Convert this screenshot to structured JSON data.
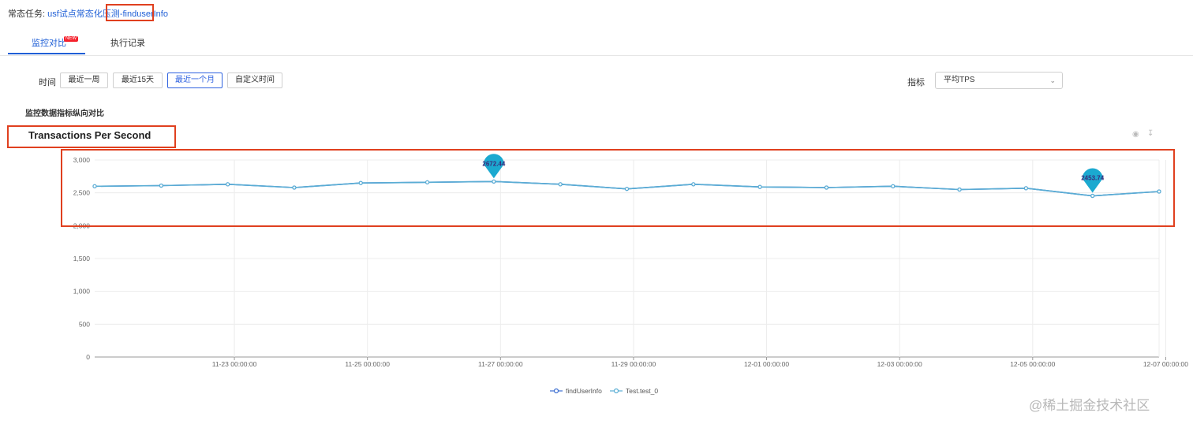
{
  "task": {
    "label": "常态任务:",
    "link_part1": "usf试点常态化压测",
    "link_part2": "-finduserInfo"
  },
  "tabs": [
    {
      "label": "监控对比",
      "badge": "NEW",
      "active": true
    },
    {
      "label": "执行记录",
      "active": false
    }
  ],
  "filters": {
    "time_label": "时间",
    "time_buttons": [
      {
        "label": "最近一周",
        "active": false
      },
      {
        "label": "最近15天",
        "active": false
      },
      {
        "label": "最近一个月",
        "active": true
      },
      {
        "label": "自定义时间",
        "active": false
      }
    ],
    "metric_label": "指标",
    "metric_value": "平均TPS"
  },
  "section_title": "监控数据指标纵向对比",
  "watermark": "@稀土掘金技术社区",
  "colors": {
    "accent": "#1f5fd6",
    "line": "#5aaed4",
    "marker": "#1ba9d0",
    "highlight": "#e0401f"
  },
  "chart_data": {
    "type": "line",
    "title": "Transactions Per Second",
    "ylim": [
      0,
      3000
    ],
    "yticks": [
      "0",
      "500",
      "1,000",
      "1,500",
      "2,000",
      "2,500",
      "3,000"
    ],
    "ytick_values": [
      0,
      500,
      1000,
      1500,
      2000,
      2500,
      3000
    ],
    "xticks": [
      "11-23 00:00:00",
      "11-25 00:00:00",
      "11-27 00:00:00",
      "11-29 00:00:00",
      "12-01 00:00:00",
      "12-03 00:00:00",
      "12-05 00:00:00",
      "12-07 00:00:00"
    ],
    "x_days": [
      20.9,
      21.9,
      22.9,
      23.9,
      24.9,
      25.9,
      26.9,
      27.9,
      28.9,
      29.9,
      30.9,
      31.9,
      32.9,
      33.9,
      34.9,
      35.9,
      36.9
    ],
    "xtick_days": [
      23,
      25,
      27,
      29,
      31,
      33,
      35,
      37
    ],
    "xlim": [
      20.9,
      36.9
    ],
    "series": [
      {
        "name": "findUserInfo",
        "values": [
          2600,
          2610,
          2630,
          2580,
          2650,
          2660,
          2672.44,
          2630,
          2560,
          2630,
          2590,
          2580,
          2600,
          2550,
          2570,
          2453.74,
          2520
        ]
      },
      {
        "name": "Test.test_0",
        "values": [
          2600,
          2610,
          2630,
          2580,
          2650,
          2660,
          2672.44,
          2630,
          2560,
          2630,
          2590,
          2580,
          2600,
          2550,
          2570,
          2453.74,
          2520
        ]
      }
    ],
    "annotations": [
      {
        "index": 6,
        "text": "2672.44"
      },
      {
        "index": 15,
        "text": "2453.74"
      }
    ],
    "legend": [
      "findUserInfo",
      "Test.test_0"
    ],
    "legend_position": "bottom",
    "grid": true
  }
}
